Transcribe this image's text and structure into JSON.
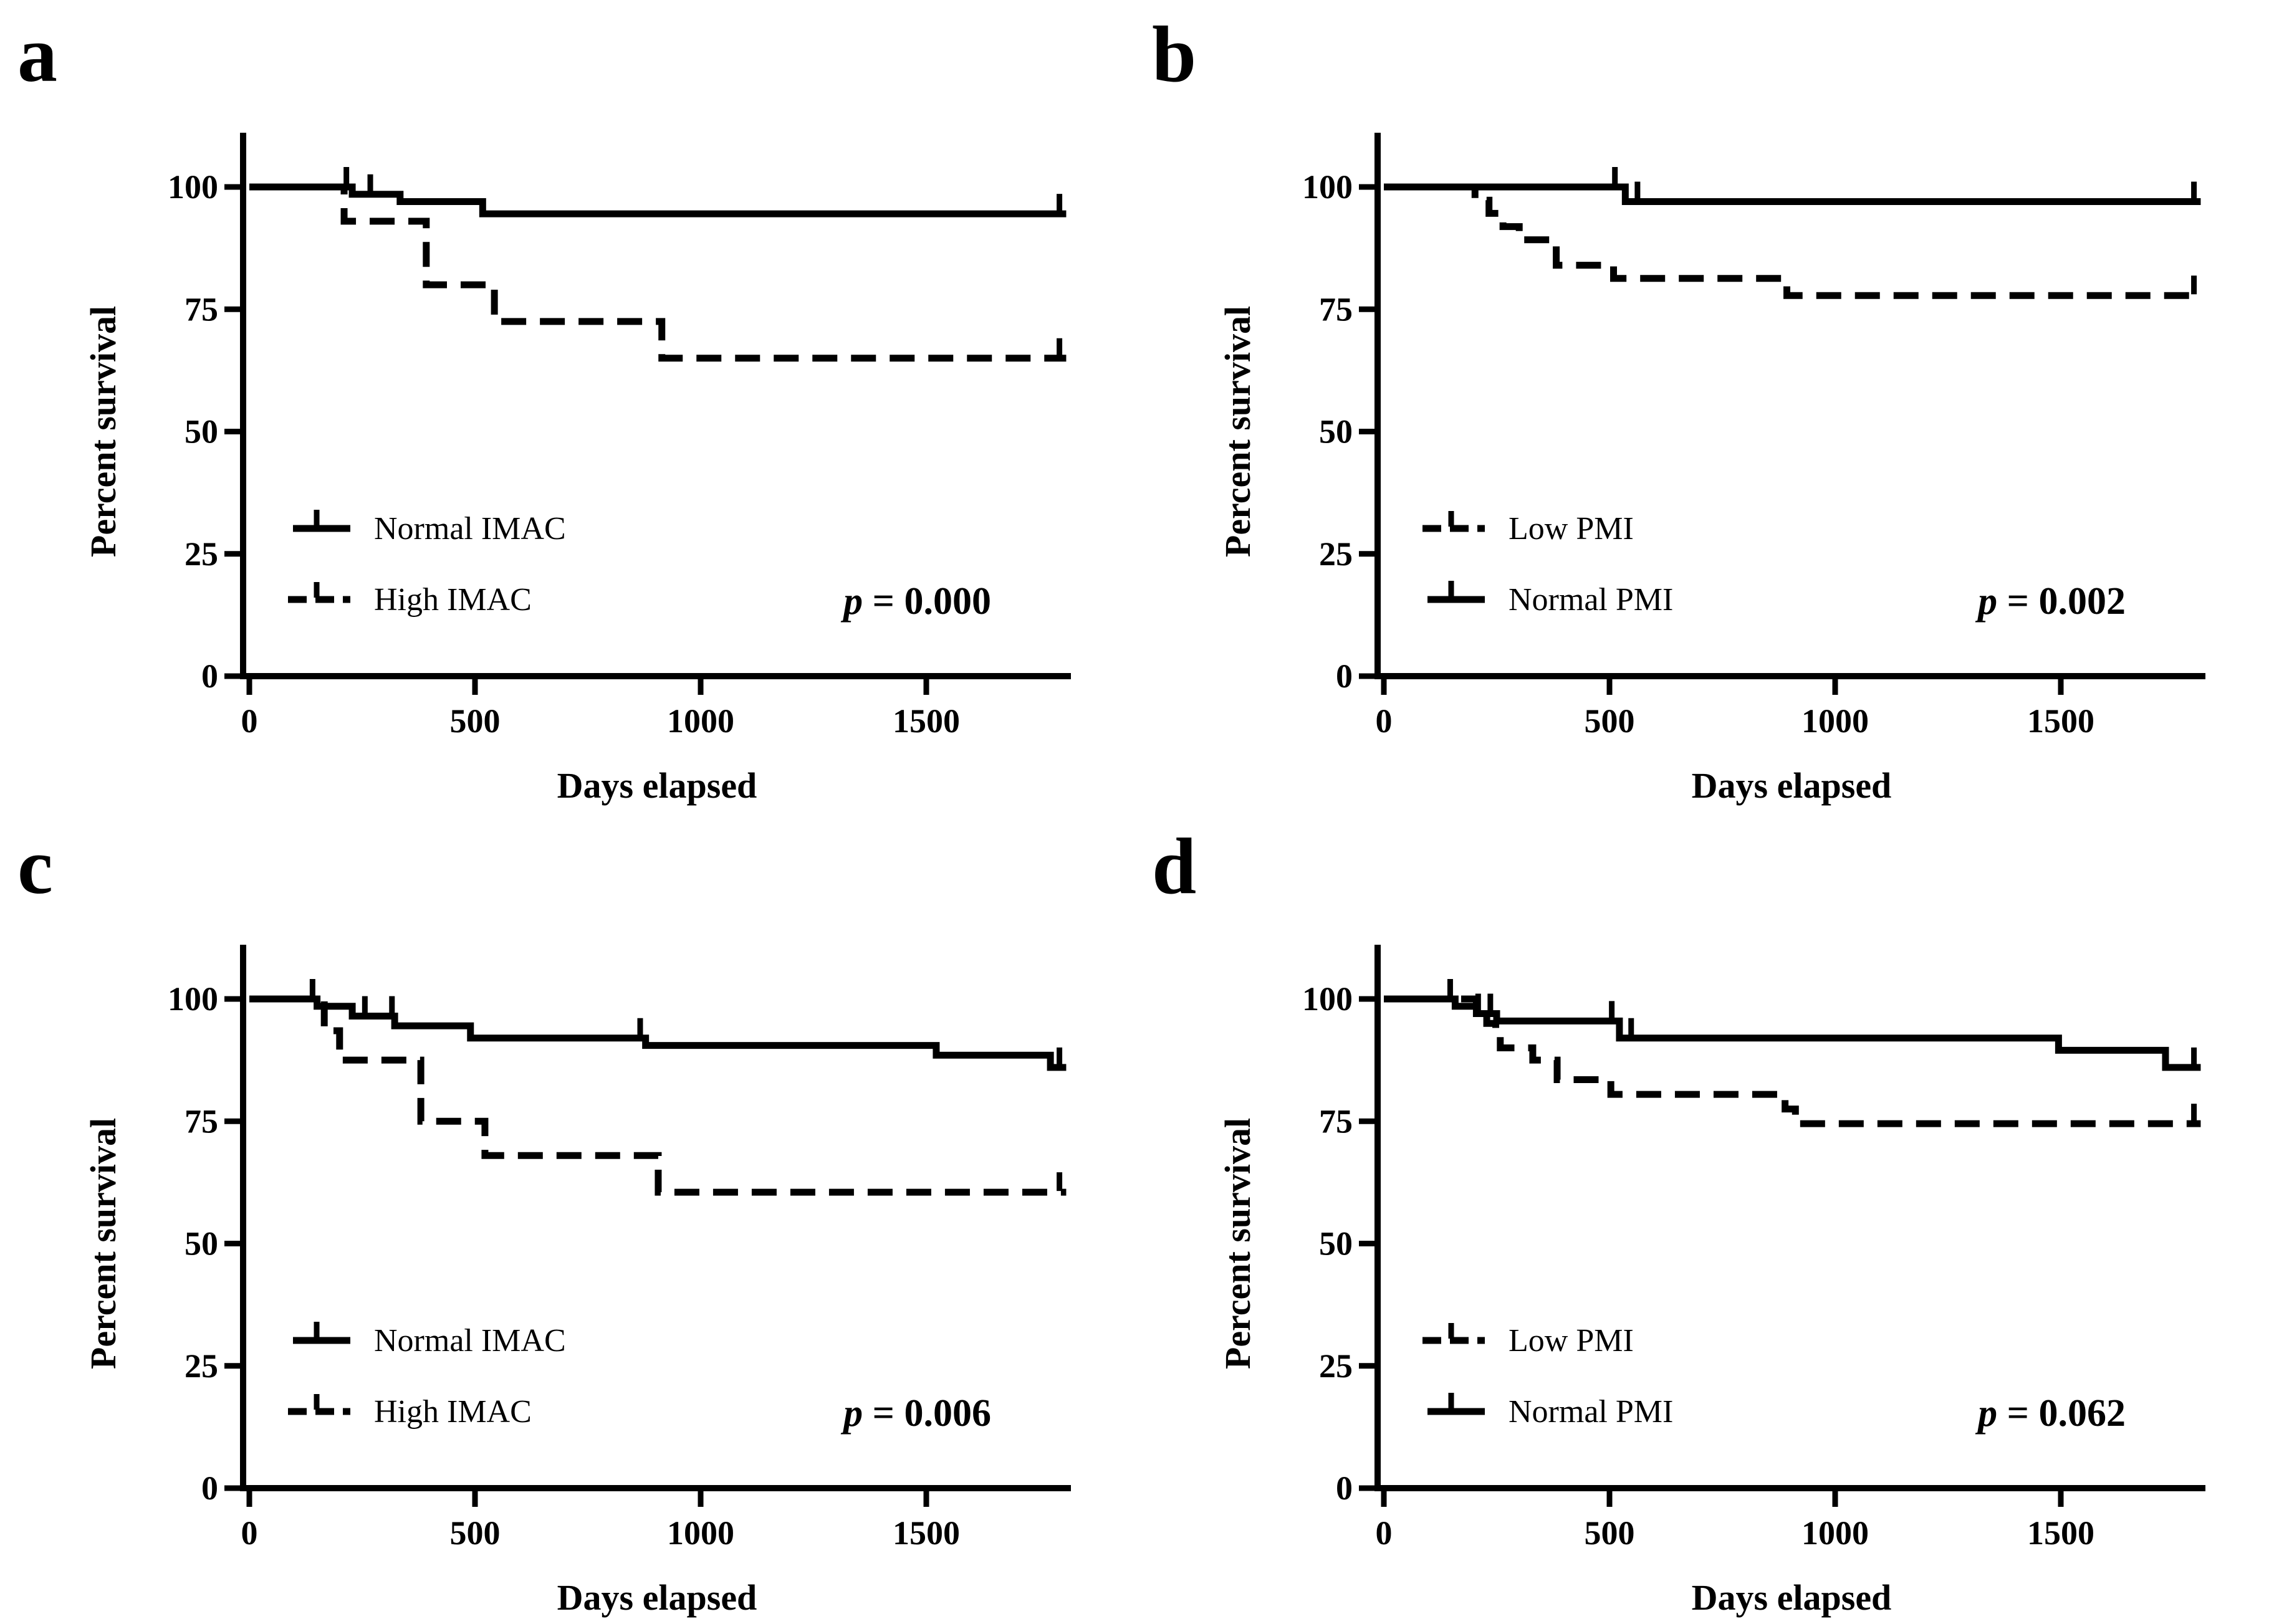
{
  "figure": {
    "background": "#ffffff",
    "ink": "#000000",
    "xlabel": "Days elapsed",
    "ylabel": "Percent survival"
  },
  "chart_data": [
    {
      "panel": "a",
      "type": "line",
      "subtype": "kaplan-meier-step",
      "title": "",
      "xlabel": "Days elapsed",
      "ylabel": "Percent survival",
      "xlim": [
        0,
        1830
      ],
      "ylim": [
        0,
        100
      ],
      "xticks": [
        "0",
        "500",
        "1000",
        "1500"
      ],
      "xtick_values": [
        0,
        500,
        1000,
        1500
      ],
      "yticks": [
        "0",
        "25",
        "50",
        "75",
        "100"
      ],
      "ytick_values": [
        0,
        25,
        50,
        75,
        100
      ],
      "grid": false,
      "legend_position": "lower-left",
      "p_italic": "p",
      "p_rest": " = 0.000",
      "legend": [
        {
          "label": "Normal IMAC",
          "style": "solid"
        },
        {
          "label": "High IMAC",
          "style": "dashed"
        }
      ],
      "series": [
        {
          "name": "Normal IMAC",
          "style": "solid",
          "points": [
            [
              0,
              100
            ],
            [
              228,
              98.5
            ],
            [
              334,
              97
            ],
            [
              517,
              94.5
            ]
          ],
          "end": 1810,
          "censors": [
            [
              215,
              100
            ],
            [
              268,
              98.5
            ],
            [
              1795,
              94.5
            ]
          ]
        },
        {
          "name": "High IMAC",
          "style": "dashed",
          "points": [
            [
              0,
              100
            ],
            [
              210,
              93
            ],
            [
              392,
              80
            ],
            [
              543,
              72.5
            ],
            [
              914,
              65
            ]
          ],
          "end": 1810,
          "censors": [
            [
              1795,
              65
            ]
          ]
        }
      ]
    },
    {
      "panel": "b",
      "type": "line",
      "subtype": "kaplan-meier-step",
      "title": "",
      "xlabel": "Days elapsed",
      "ylabel": "Percent survival",
      "xlim": [
        0,
        1830
      ],
      "ylim": [
        0,
        100
      ],
      "xticks": [
        "0",
        "500",
        "1000",
        "1500"
      ],
      "xtick_values": [
        0,
        500,
        1000,
        1500
      ],
      "yticks": [
        "0",
        "25",
        "50",
        "75",
        "100"
      ],
      "ytick_values": [
        0,
        25,
        50,
        75,
        100
      ],
      "grid": false,
      "legend_position": "lower-left",
      "p_italic": "p",
      "p_rest": " = 0.002",
      "legend": [
        {
          "label": "Low PMI",
          "style": "dashed"
        },
        {
          "label": "Normal PMI",
          "style": "solid"
        }
      ],
      "series": [
        {
          "name": "Normal PMI",
          "style": "solid",
          "points": [
            [
              0,
              100
            ],
            [
              535,
              97
            ]
          ],
          "end": 1810,
          "censors": [
            [
              512,
              100
            ],
            [
              562,
              97
            ],
            [
              1795,
              97
            ]
          ]
        },
        {
          "name": "Low PMI",
          "style": "dashed",
          "points": [
            [
              0,
              100
            ],
            [
              202,
              97.3
            ],
            [
              233,
              94.6
            ],
            [
              264,
              91.9
            ],
            [
              300,
              89.2
            ],
            [
              382,
              84
            ],
            [
              509,
              81.3
            ],
            [
              893,
              77.8
            ]
          ],
          "end": 1810,
          "censors": [
            [
              1795,
              77.8
            ]
          ]
        }
      ]
    },
    {
      "panel": "c",
      "type": "line",
      "subtype": "kaplan-meier-step",
      "title": "",
      "xlabel": "Days elapsed",
      "ylabel": "Percent survival",
      "xlim": [
        0,
        1830
      ],
      "ylim": [
        0,
        100
      ],
      "xticks": [
        "0",
        "500",
        "1000",
        "1500"
      ],
      "xtick_values": [
        0,
        500,
        1000,
        1500
      ],
      "yticks": [
        "0",
        "25",
        "50",
        "75",
        "100"
      ],
      "ytick_values": [
        0,
        25,
        50,
        75,
        100
      ],
      "grid": false,
      "legend_position": "lower-left",
      "p_italic": "p",
      "p_rest": " = 0.006",
      "legend": [
        {
          "label": "Normal IMAC",
          "style": "solid"
        },
        {
          "label": "High IMAC",
          "style": "dashed"
        }
      ],
      "series": [
        {
          "name": "Normal IMAC",
          "style": "solid",
          "points": [
            [
              0,
              100
            ],
            [
              150,
              98.5
            ],
            [
              228,
              96.5
            ],
            [
              322,
              94.5
            ],
            [
              490,
              92
            ],
            [
              878,
              90.5
            ],
            [
              1522,
              88.5
            ],
            [
              1775,
              86
            ]
          ],
          "end": 1810,
          "censors": [
            [
              140,
              100
            ],
            [
              256,
              96.5
            ],
            [
              316,
              96.5
            ],
            [
              866,
              92
            ],
            [
              1795,
              86
            ]
          ]
        },
        {
          "name": "High IMAC",
          "style": "dashed",
          "points": [
            [
              0,
              100
            ],
            [
              166,
              93.5
            ],
            [
              200,
              87.5
            ],
            [
              380,
              75
            ],
            [
              522,
              68
            ],
            [
              906,
              60.5
            ]
          ],
          "end": 1810,
          "censors": [
            [
              1795,
              60.5
            ]
          ]
        }
      ]
    },
    {
      "panel": "d",
      "type": "line",
      "subtype": "kaplan-meier-step",
      "title": "",
      "xlabel": "Days elapsed",
      "ylabel": "Percent survival",
      "xlim": [
        0,
        1830
      ],
      "ylim": [
        0,
        100
      ],
      "xticks": [
        "0",
        "500",
        "1000",
        "1500"
      ],
      "xtick_values": [
        0,
        500,
        1000,
        1500
      ],
      "yticks": [
        "0",
        "25",
        "50",
        "75",
        "100"
      ],
      "ytick_values": [
        0,
        25,
        50,
        75,
        100
      ],
      "grid": false,
      "legend_position": "lower-left",
      "p_italic": "p",
      "p_rest": " = 0.062",
      "legend": [
        {
          "label": "Low PMI",
          "style": "dashed"
        },
        {
          "label": "Normal PMI",
          "style": "solid"
        }
      ],
      "series": [
        {
          "name": "Normal PMI",
          "style": "solid",
          "points": [
            [
              0,
              100
            ],
            [
              158,
              98.5
            ],
            [
              205,
              97
            ],
            [
              250,
              95.5
            ],
            [
              522,
              92
            ],
            [
              1495,
              89.5
            ],
            [
              1732,
              86
            ]
          ],
          "end": 1810,
          "censors": [
            [
              147,
              100
            ],
            [
              209,
              97
            ],
            [
              236,
              97
            ],
            [
              505,
              95.5
            ],
            [
              548,
              92
            ],
            [
              1795,
              86
            ]
          ]
        },
        {
          "name": "Low PMI",
          "style": "dashed",
          "points": [
            [
              0,
              100
            ],
            [
              205,
              97.5
            ],
            [
              228,
              95
            ],
            [
              248,
              92.5
            ],
            [
              258,
              90
            ],
            [
              330,
              87.5
            ],
            [
              384,
              83.5
            ],
            [
              503,
              80.5
            ],
            [
              889,
              77.5
            ],
            [
              912,
              74.5
            ]
          ],
          "end": 1810,
          "censors": [
            [
              1795,
              74.5
            ]
          ]
        }
      ]
    }
  ]
}
